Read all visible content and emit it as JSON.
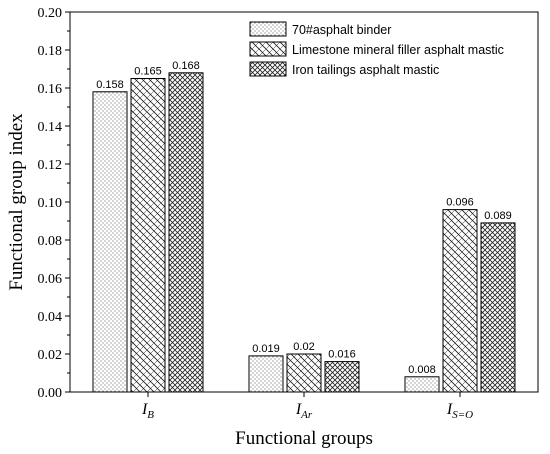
{
  "chart_data": {
    "type": "bar",
    "title": "",
    "xlabel": "Functional groups",
    "ylabel": "Functional group index",
    "ylim": [
      0,
      0.2
    ],
    "yticks": [
      "0.00",
      "0.02",
      "0.04",
      "0.06",
      "0.08",
      "0.10",
      "0.12",
      "0.14",
      "0.16",
      "0.18",
      "0.20"
    ],
    "categories": [
      {
        "main": "I",
        "sub": "B"
      },
      {
        "main": "I",
        "sub": "Ar"
      },
      {
        "main": "I",
        "sub": "S=O"
      }
    ],
    "legend_position": "top-right",
    "series": [
      {
        "name": "70#asphalt binder",
        "pattern": "dots",
        "values": [
          0.158,
          0.019,
          0.008
        ],
        "labels": [
          "0.158",
          "0.019",
          "0.008"
        ]
      },
      {
        "name": "Limestone mineral filler asphalt mastic",
        "pattern": "diagonal-cross",
        "values": [
          0.165,
          0.02,
          0.096
        ],
        "labels": [
          "0.165",
          "0.02",
          "0.096"
        ]
      },
      {
        "name": "Iron tailings asphalt mastic",
        "pattern": "dense-cross",
        "values": [
          0.168,
          0.016,
          0.089
        ],
        "labels": [
          "0.168",
          "0.016",
          "0.089"
        ]
      }
    ]
  }
}
